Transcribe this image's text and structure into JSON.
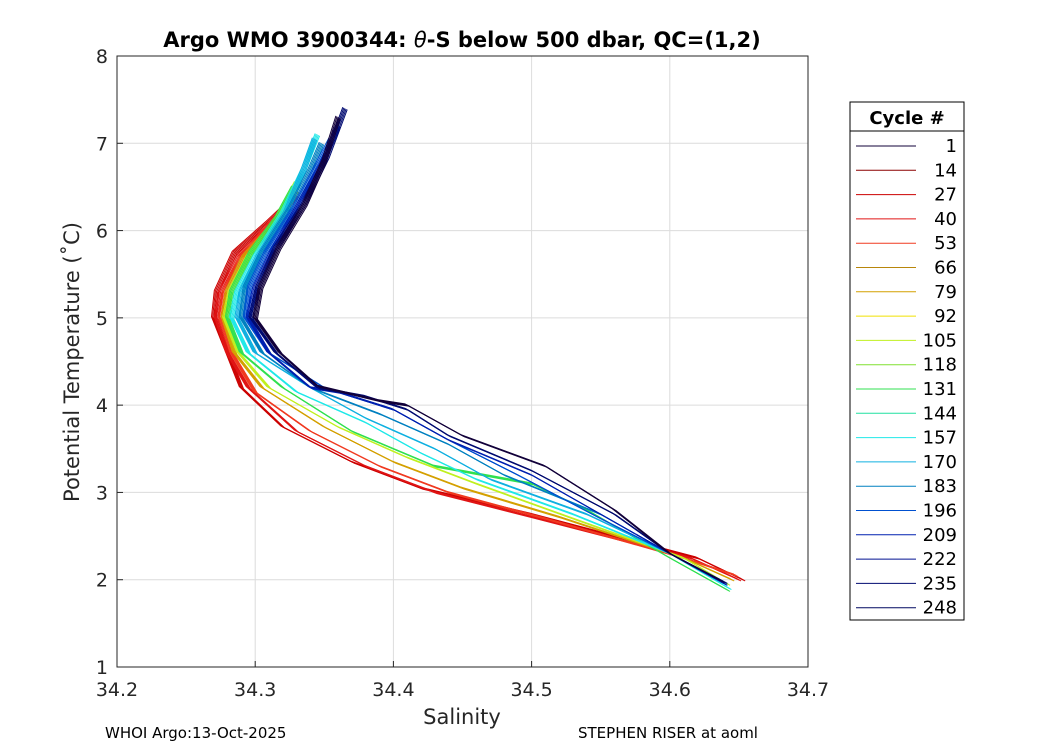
{
  "chart_data": {
    "type": "line",
    "title_prefix": "Argo WMO 3900344: ",
    "title_theta": "θ",
    "title_suffix": "-S below 500 dbar,  QC=(1,2)",
    "xlabel": "Salinity",
    "ylabel": "Potential Temperature (˚C)",
    "xlim": [
      34.2,
      34.7
    ],
    "ylim": [
      1,
      8
    ],
    "xticks": [
      "34.2",
      "34.3",
      "34.4",
      "34.5",
      "34.6",
      "34.7"
    ],
    "yticks": [
      "1",
      "2",
      "3",
      "4",
      "5",
      "6",
      "7",
      "8"
    ],
    "grid": true,
    "legend_title": "Cycle #",
    "legend_position": "outside-right",
    "series": [
      {
        "name": "1",
        "color": "#12003a"
      },
      {
        "name": "14",
        "color": "#8b0000"
      },
      {
        "name": "27",
        "color": "#cc0000"
      },
      {
        "name": "40",
        "color": "#e01515"
      },
      {
        "name": "53",
        "color": "#f03a20"
      },
      {
        "name": "66",
        "color": "#b8860b"
      },
      {
        "name": "79",
        "color": "#d4a000"
      },
      {
        "name": "92",
        "color": "#f0e000"
      },
      {
        "name": "105",
        "color": "#c0f020"
      },
      {
        "name": "118",
        "color": "#80e030"
      },
      {
        "name": "131",
        "color": "#30e050"
      },
      {
        "name": "144",
        "color": "#20e0a0"
      },
      {
        "name": "157",
        "color": "#20e8e8"
      },
      {
        "name": "170",
        "color": "#10b0e0"
      },
      {
        "name": "183",
        "color": "#0080c0"
      },
      {
        "name": "196",
        "color": "#0050d0"
      },
      {
        "name": "209",
        "color": "#0020b0"
      },
      {
        "name": "222",
        "color": "#001090"
      },
      {
        "name": "235",
        "color": "#000a70"
      },
      {
        "name": "248",
        "color": "#000860"
      }
    ],
    "profiles": [
      {
        "color": "#cc0000",
        "points": [
          [
            34.653,
            2.0
          ],
          [
            34.62,
            2.25
          ],
          [
            34.5,
            2.75
          ],
          [
            34.42,
            3.05
          ],
          [
            34.37,
            3.35
          ],
          [
            34.32,
            3.75
          ],
          [
            34.29,
            4.2
          ],
          [
            34.28,
            4.6
          ],
          [
            34.27,
            5.0
          ],
          [
            34.272,
            5.3
          ],
          [
            34.285,
            5.75
          ],
          [
            34.31,
            6.1
          ],
          [
            34.33,
            6.4
          ]
        ]
      },
      {
        "color": "#e01515",
        "points": [
          [
            34.65,
            2.0
          ],
          [
            34.615,
            2.25
          ],
          [
            34.5,
            2.72
          ],
          [
            34.43,
            3.0
          ],
          [
            34.38,
            3.3
          ],
          [
            34.33,
            3.7
          ],
          [
            34.295,
            4.2
          ],
          [
            34.28,
            4.6
          ],
          [
            34.272,
            5.0
          ],
          [
            34.275,
            5.3
          ],
          [
            34.288,
            5.7
          ],
          [
            34.31,
            6.05
          ],
          [
            34.325,
            6.35
          ]
        ]
      },
      {
        "color": "#f03a20",
        "points": [
          [
            34.648,
            2.05
          ],
          [
            34.61,
            2.25
          ],
          [
            34.51,
            2.7
          ],
          [
            34.44,
            3.0
          ],
          [
            34.39,
            3.3
          ],
          [
            34.34,
            3.7
          ],
          [
            34.3,
            4.15
          ],
          [
            34.283,
            4.6
          ],
          [
            34.275,
            5.0
          ],
          [
            34.278,
            5.3
          ],
          [
            34.29,
            5.7
          ],
          [
            34.31,
            6.05
          ],
          [
            34.33,
            6.4
          ]
        ]
      },
      {
        "color": "#d4a000",
        "points": [
          [
            34.645,
            2.0
          ],
          [
            34.61,
            2.25
          ],
          [
            34.52,
            2.72
          ],
          [
            34.45,
            3.05
          ],
          [
            34.4,
            3.35
          ],
          [
            34.35,
            3.75
          ],
          [
            34.305,
            4.2
          ],
          [
            34.285,
            4.6
          ],
          [
            34.277,
            5.0
          ],
          [
            34.28,
            5.3
          ],
          [
            34.292,
            5.7
          ],
          [
            34.312,
            6.05
          ],
          [
            34.33,
            6.45
          ]
        ]
      },
      {
        "color": "#c0f020",
        "points": [
          [
            34.642,
            1.95
          ],
          [
            34.61,
            2.25
          ],
          [
            34.53,
            2.7
          ],
          [
            34.46,
            3.1
          ],
          [
            34.41,
            3.4
          ],
          [
            34.36,
            3.75
          ],
          [
            34.31,
            4.2
          ],
          [
            34.288,
            4.6
          ],
          [
            34.278,
            5.0
          ],
          [
            34.282,
            5.3
          ],
          [
            34.295,
            5.7
          ],
          [
            34.315,
            6.1
          ],
          [
            34.33,
            6.55
          ]
        ]
      },
      {
        "color": "#30e050",
        "points": [
          [
            34.642,
            1.88
          ],
          [
            34.6,
            2.25
          ],
          [
            34.54,
            2.8
          ],
          [
            34.5,
            3.1
          ],
          [
            34.43,
            3.3
          ],
          [
            34.37,
            3.7
          ],
          [
            34.32,
            4.2
          ],
          [
            34.29,
            4.6
          ],
          [
            34.28,
            5.0
          ],
          [
            34.283,
            5.3
          ],
          [
            34.297,
            5.75
          ],
          [
            34.316,
            6.15
          ],
          [
            34.328,
            6.5
          ]
        ]
      },
      {
        "color": "#20e8e8",
        "points": [
          [
            34.643,
            1.9
          ],
          [
            34.6,
            2.3
          ],
          [
            34.53,
            2.75
          ],
          [
            34.46,
            3.15
          ],
          [
            34.42,
            3.45
          ],
          [
            34.38,
            3.8
          ],
          [
            34.33,
            4.15
          ],
          [
            34.295,
            4.6
          ],
          [
            34.283,
            5.0
          ],
          [
            34.287,
            5.3
          ],
          [
            34.3,
            5.7
          ],
          [
            34.32,
            6.2
          ],
          [
            34.335,
            6.7
          ],
          [
            34.345,
            7.1
          ]
        ]
      },
      {
        "color": "#10b0e0",
        "points": [
          [
            34.64,
            1.95
          ],
          [
            34.6,
            2.3
          ],
          [
            34.54,
            2.75
          ],
          [
            34.47,
            3.15
          ],
          [
            34.43,
            3.5
          ],
          [
            34.38,
            3.85
          ],
          [
            34.34,
            4.2
          ],
          [
            34.3,
            4.6
          ],
          [
            34.287,
            5.0
          ],
          [
            34.29,
            5.3
          ],
          [
            34.302,
            5.7
          ],
          [
            34.322,
            6.2
          ],
          [
            34.335,
            6.7
          ],
          [
            34.343,
            7.05
          ]
        ]
      },
      {
        "color": "#0080c0",
        "points": [
          [
            34.64,
            1.97
          ],
          [
            34.6,
            2.3
          ],
          [
            34.55,
            2.75
          ],
          [
            34.48,
            3.2
          ],
          [
            34.44,
            3.55
          ],
          [
            34.39,
            3.9
          ],
          [
            34.34,
            4.2
          ],
          [
            34.305,
            4.6
          ],
          [
            34.29,
            5.0
          ],
          [
            34.293,
            5.35
          ],
          [
            34.305,
            5.75
          ],
          [
            34.325,
            6.25
          ],
          [
            34.34,
            6.7
          ],
          [
            34.348,
            7.0
          ]
        ]
      },
      {
        "color": "#0050d0",
        "points": [
          [
            34.64,
            1.95
          ],
          [
            34.6,
            2.3
          ],
          [
            34.55,
            2.7
          ],
          [
            34.49,
            3.2
          ],
          [
            34.44,
            3.6
          ],
          [
            34.4,
            3.95
          ],
          [
            34.35,
            4.2
          ],
          [
            34.31,
            4.6
          ],
          [
            34.293,
            5.0
          ],
          [
            34.296,
            5.35
          ],
          [
            34.308,
            5.75
          ],
          [
            34.328,
            6.25
          ],
          [
            34.345,
            6.75
          ],
          [
            34.355,
            7.05
          ]
        ]
      },
      {
        "color": "#0020b0",
        "points": [
          [
            34.64,
            1.95
          ],
          [
            34.6,
            2.3
          ],
          [
            34.55,
            2.75
          ],
          [
            34.5,
            3.2
          ],
          [
            34.44,
            3.6
          ],
          [
            34.4,
            3.95
          ],
          [
            34.36,
            4.15
          ],
          [
            34.34,
            4.2
          ],
          [
            34.31,
            4.6
          ],
          [
            34.295,
            5.0
          ],
          [
            34.3,
            5.35
          ],
          [
            34.312,
            5.75
          ],
          [
            34.33,
            6.25
          ],
          [
            34.348,
            6.75
          ],
          [
            34.36,
            7.2
          ]
        ]
      },
      {
        "color": "#000a70",
        "points": [
          [
            34.64,
            1.97
          ],
          [
            34.6,
            2.3
          ],
          [
            34.56,
            2.75
          ],
          [
            34.5,
            3.25
          ],
          [
            34.44,
            3.65
          ],
          [
            34.41,
            3.95
          ],
          [
            34.38,
            4.1
          ],
          [
            34.345,
            4.2
          ],
          [
            34.315,
            4.6
          ],
          [
            34.297,
            5.0
          ],
          [
            34.302,
            5.35
          ],
          [
            34.315,
            5.8
          ],
          [
            34.335,
            6.3
          ],
          [
            34.352,
            6.85
          ],
          [
            34.365,
            7.4
          ]
        ]
      },
      {
        "color": "#12003a",
        "points": [
          [
            34.638,
            1.98
          ],
          [
            34.6,
            2.3
          ],
          [
            34.56,
            2.8
          ],
          [
            34.51,
            3.3
          ],
          [
            34.45,
            3.65
          ],
          [
            34.41,
            4.0
          ],
          [
            34.39,
            4.05
          ],
          [
            34.345,
            4.22
          ],
          [
            34.318,
            4.6
          ],
          [
            34.3,
            5.0
          ],
          [
            34.304,
            5.35
          ],
          [
            34.317,
            5.8
          ],
          [
            34.336,
            6.3
          ],
          [
            34.35,
            6.8
          ],
          [
            34.36,
            7.3
          ]
        ]
      }
    ]
  },
  "footer": {
    "left": "WHOI Argo:13-Oct-2025",
    "right": "STEPHEN RISER at aoml"
  }
}
